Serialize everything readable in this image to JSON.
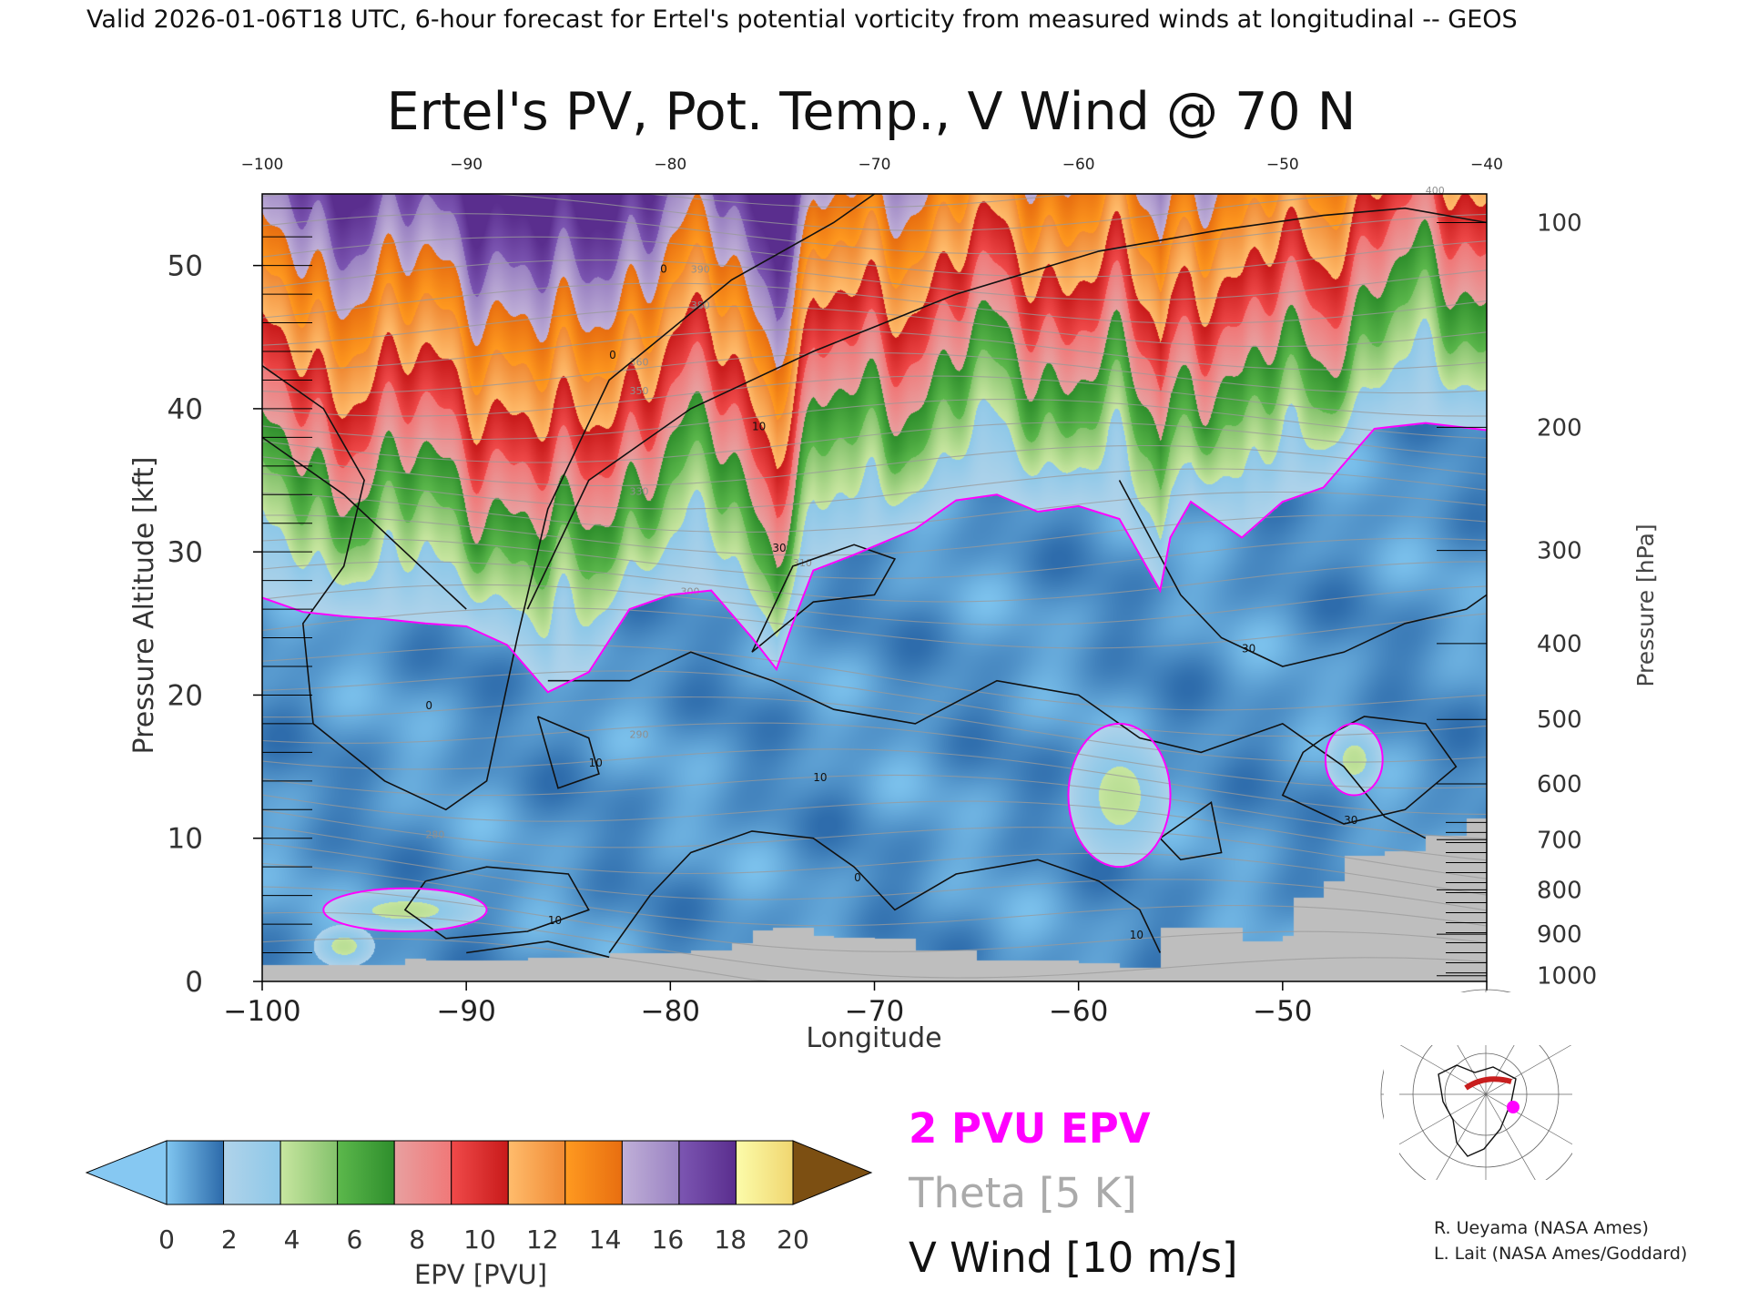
{
  "header": "Valid 2026-01-06T18 UTC, 6-hour forecast for Ertel's potential vorticity from measured winds at longitudinal -- GEOS",
  "chart_data": {
    "type": "heatmap",
    "title": "Ertel's PV, Pot. Temp., V Wind @ 70 N",
    "xlabel": "Longitude",
    "ylabel": "Pressure Altitude [kft]",
    "ylabel_right": "Pressure [hPa]",
    "xlim": [
      -100,
      -40
    ],
    "ylim": [
      0,
      55
    ],
    "x_ticks": [
      -100,
      -90,
      -80,
      -70,
      -60,
      -50,
      -40
    ],
    "x_tick_labels": [
      "−100",
      "−90",
      "−80",
      "−70",
      "−60",
      "−50",
      "−40"
    ],
    "top_tick_labels": [
      "−100",
      "−90",
      "−80",
      "−70",
      "−60",
      "−50",
      "−40"
    ],
    "y_ticks": [
      0,
      10,
      20,
      30,
      40,
      50
    ],
    "pressure_levels": [
      {
        "label": "100",
        "kft": 53.0
      },
      {
        "label": "200",
        "kft": 38.7
      },
      {
        "label": "300",
        "kft": 30.1
      },
      {
        "label": "400",
        "kft": 23.6
      },
      {
        "label": "500",
        "kft": 18.3
      },
      {
        "label": "600",
        "kft": 13.8
      },
      {
        "label": "700",
        "kft": 9.9
      },
      {
        "label": "800",
        "kft": 6.4
      },
      {
        "label": "900",
        "kft": 3.3
      },
      {
        "label": "1000",
        "kft": 0.4
      }
    ],
    "colorbar": {
      "label": "EPV [PVU]",
      "min": 0,
      "max": 20,
      "ticks": [
        "0",
        "2",
        "4",
        "6",
        "8",
        "10",
        "12",
        "14",
        "16",
        "18",
        "20"
      ],
      "under_color": "#86c8f2",
      "over_color": "#7c4f12",
      "bands": [
        [
          "#80c6f0",
          "#2c6aaa"
        ],
        [
          "#b0d3ea",
          "#8ec8e8"
        ],
        [
          "#c8e6a0",
          "#84c26c"
        ],
        [
          "#5cb84c",
          "#2e8e2c"
        ],
        [
          "#e8a0a0",
          "#f07878"
        ],
        [
          "#f04a4a",
          "#c81a1a"
        ],
        [
          "#ffbc6c",
          "#f08a34"
        ],
        [
          "#ff9a20",
          "#e86e10"
        ],
        [
          "#c0b0d8",
          "#9a82c2"
        ],
        [
          "#7c56b2",
          "#5a2e8e"
        ],
        [
          "#fcfcaa",
          "#f0d670"
        ]
      ]
    },
    "pv_2pvu_boundary": [
      [
        -100,
        26.8
      ],
      [
        -98,
        25.8
      ],
      [
        -96,
        25.5
      ],
      [
        -94,
        25.3
      ],
      [
        -92,
        25
      ],
      [
        -90,
        24.8
      ],
      [
        -88,
        23.5
      ],
      [
        -86,
        20.2
      ],
      [
        -84,
        21.6
      ],
      [
        -82,
        26
      ],
      [
        -80,
        27
      ],
      [
        -78,
        27.3
      ],
      [
        -76,
        24
      ],
      [
        -74.8,
        21.8
      ],
      [
        -74,
        25
      ],
      [
        -73,
        28.7
      ],
      [
        -71,
        29.8
      ],
      [
        -68,
        31.6
      ],
      [
        -66,
        33.6
      ],
      [
        -64,
        34
      ],
      [
        -62,
        32.8
      ],
      [
        -60,
        33.2
      ],
      [
        -58,
        32.3
      ],
      [
        -56,
        27.3
      ],
      [
        -55.5,
        31
      ],
      [
        -54.5,
        33.5
      ],
      [
        -52,
        31
      ],
      [
        -50,
        33.5
      ],
      [
        -48,
        34.5
      ],
      [
        -45.5,
        38.6
      ],
      [
        -43,
        39
      ],
      [
        -40,
        38.5
      ]
    ],
    "theta_contour_labels": [
      "310",
      "300",
      "330",
      "350",
      "360",
      "380",
      "390",
      "290",
      "280",
      "400"
    ],
    "legend_lines": [
      {
        "text": "2 PVU EPV",
        "color": "#ff00ff"
      },
      {
        "text": "Theta [5 K]",
        "color": "#aaaaaa"
      },
      {
        "text": "V Wind [10 m/s]",
        "color": "#000000"
      }
    ],
    "wind_contour_labels": [
      "0",
      "10",
      "30"
    ]
  },
  "credits": [
    "R. Ueyama (NASA Ames)",
    "L. Lait (NASA Ames/Goddard)"
  ],
  "inset_map": {
    "marker_color": "#ff00ff",
    "track_color": "#c81e1e"
  }
}
